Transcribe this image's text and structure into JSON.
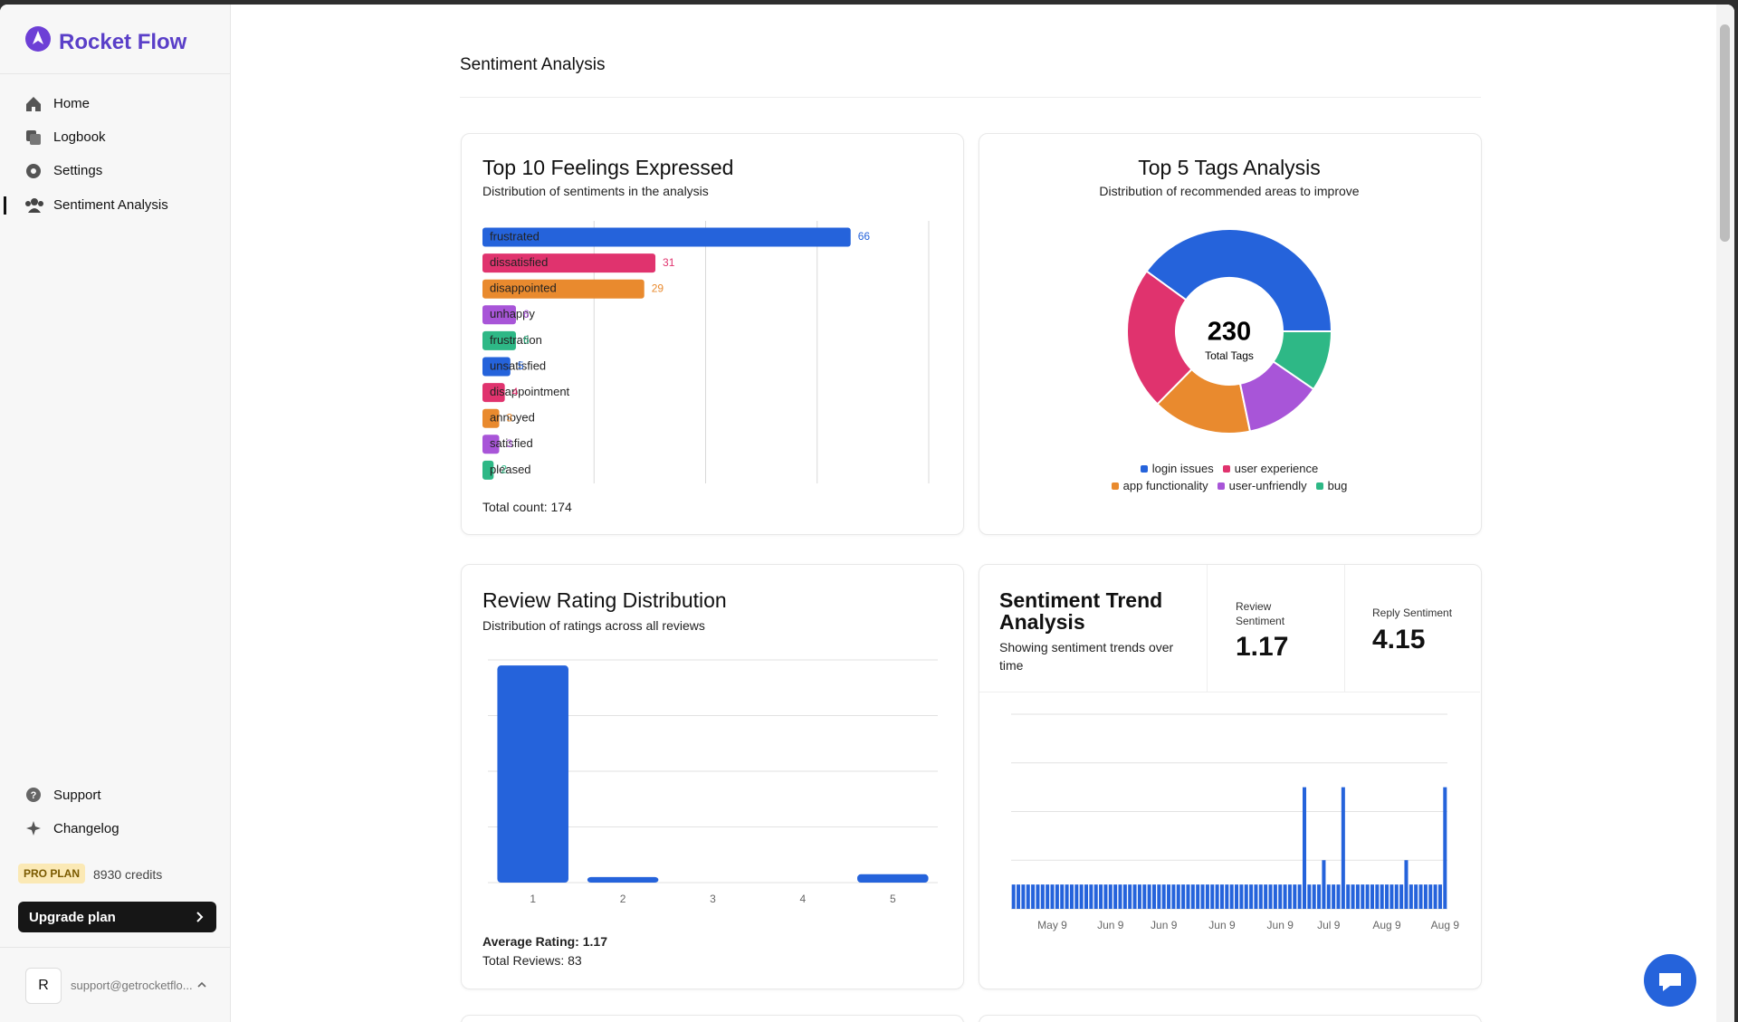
{
  "sidebar": {
    "brand": "Rocket Flow",
    "nav": [
      "Home",
      "Logbook",
      "Settings",
      "Sentiment Analysis"
    ],
    "footer_nav": [
      "Support",
      "Changelog"
    ],
    "plan": "PRO PLAN",
    "credits": "8930 credits",
    "upgrade": "Upgrade plan",
    "avatar": "R",
    "email": "support@getrocketflo..."
  },
  "page_title": "Sentiment Analysis",
  "chart_data": [
    {
      "type": "bar",
      "orientation": "horizontal",
      "title": "Top 10 Feelings Expressed",
      "subtitle": "Distribution of sentiments in the analysis",
      "categories": [
        "frustrated",
        "dissatisfied",
        "disappointed",
        "unhappy",
        "frustration",
        "unsatisfied",
        "disappointment",
        "annoyed",
        "satisfied",
        "pleased"
      ],
      "values": [
        66,
        31,
        29,
        6,
        6,
        5,
        4,
        3,
        3,
        2
      ],
      "colors": [
        "#2563db",
        "#e0336e",
        "#e98a2e",
        "#a855d8",
        "#2eb886",
        "#2563db",
        "#e0336e",
        "#e98a2e",
        "#a855d8",
        "#2eb886"
      ],
      "xlim": [
        0,
        80
      ],
      "xticks": [
        20,
        40,
        60,
        80
      ],
      "grid": true,
      "footer": "Total count: 174"
    },
    {
      "type": "pie",
      "title": "Top 5 Tags Analysis",
      "subtitle": "Distribution of recommended areas to improve",
      "categories": [
        "login issues",
        "user experience",
        "app functionality",
        "user-unfriendly",
        "bug"
      ],
      "values": [
        92,
        52,
        36,
        28,
        22
      ],
      "colors": [
        "#2563db",
        "#e0336e",
        "#e98a2e",
        "#a855d8",
        "#2eb886"
      ],
      "total": 230,
      "total_label": "Total Tags"
    },
    {
      "type": "bar",
      "orientation": "vertical",
      "title": "Review Rating Distribution",
      "subtitle": "Distribution of ratings across all reviews",
      "categories": [
        "1",
        "2",
        "3",
        "4",
        "5"
      ],
      "values": [
        78,
        2,
        0,
        0,
        3
      ],
      "color": "#2563db",
      "ylim": [
        0,
        80
      ],
      "yticks": [
        0,
        20,
        40,
        60,
        80
      ],
      "grid": true,
      "footer": [
        "Average Rating: 1.17",
        "Total Reviews: 83"
      ]
    },
    {
      "type": "bar",
      "orientation": "vertical",
      "title": "Sentiment Trend Analysis",
      "subtitle": "Showing sentiment trends over time",
      "stats": [
        {
          "label": "Review Sentiment",
          "value": 1.17
        },
        {
          "label": "Reply Sentiment",
          "value": 4.15
        }
      ],
      "categories": [
        null,
        null,
        null,
        null,
        null,
        null,
        null,
        null,
        "May 9",
        null,
        null,
        null,
        null,
        null,
        null,
        null,
        null,
        null,
        null,
        null,
        "Jun 9",
        null,
        null,
        null,
        null,
        null,
        null,
        null,
        null,
        null,
        null,
        "Jun 9",
        null,
        null,
        null,
        null,
        null,
        null,
        null,
        null,
        null,
        null,
        null,
        "Jun 9",
        null,
        null,
        null,
        null,
        null,
        null,
        null,
        null,
        null,
        null,
        null,
        "Jun 9",
        null,
        null,
        null,
        null,
        null,
        null,
        null,
        null,
        null,
        "Jul 9",
        null,
        null,
        null,
        null,
        null,
        null,
        null,
        null,
        null,
        null,
        null,
        "Aug 9",
        null,
        null,
        null,
        null,
        null,
        null,
        null,
        null,
        null,
        null,
        null,
        "Aug 9"
      ],
      "values": [
        1,
        1,
        1,
        1,
        1,
        1,
        1,
        1,
        1,
        1,
        1,
        1,
        1,
        1,
        1,
        1,
        1,
        1,
        1,
        1,
        1,
        1,
        1,
        1,
        1,
        1,
        1,
        1,
        1,
        1,
        1,
        1,
        1,
        1,
        1,
        1,
        1,
        1,
        1,
        1,
        1,
        1,
        1,
        1,
        1,
        1,
        1,
        1,
        1,
        1,
        1,
        1,
        1,
        1,
        1,
        1,
        1,
        1,
        1,
        1,
        5,
        1,
        1,
        1,
        2,
        1,
        1,
        1,
        5,
        1,
        1,
        1,
        1,
        1,
        1,
        1,
        1,
        1,
        1,
        1,
        1,
        2,
        1,
        1,
        1,
        1,
        1,
        1,
        1,
        5
      ],
      "color": "#2563db",
      "ylim": [
        0,
        8
      ],
      "yticks": [
        0,
        2,
        4,
        6,
        8
      ],
      "grid": true
    }
  ]
}
